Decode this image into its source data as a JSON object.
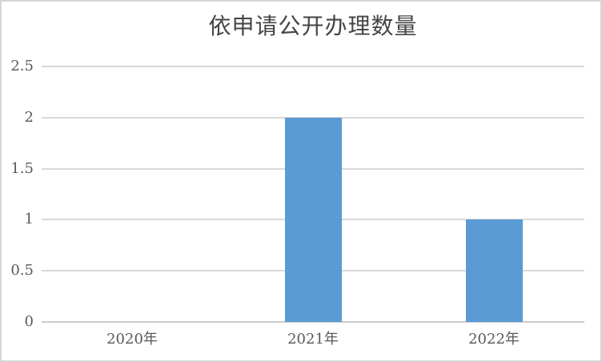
{
  "chart_data": {
    "type": "bar",
    "title": "依申请公开办理数量",
    "categories": [
      "2020年",
      "2021年",
      "2022年"
    ],
    "values": [
      0,
      2,
      1
    ],
    "xlabel": "",
    "ylabel": "",
    "ylim": [
      0,
      2.5
    ],
    "yticks": [
      0,
      0.5,
      1,
      1.5,
      2,
      2.5
    ],
    "grid": true,
    "legend": false,
    "colors": {
      "bar": "#5B9BD5",
      "gridline": "#D9D9D9",
      "axis_line": "#CBCBCB",
      "title_text": "#454545",
      "tick_text": "#595959",
      "frame_border": "#D4D4D4",
      "background": "#FFFFFF"
    }
  }
}
